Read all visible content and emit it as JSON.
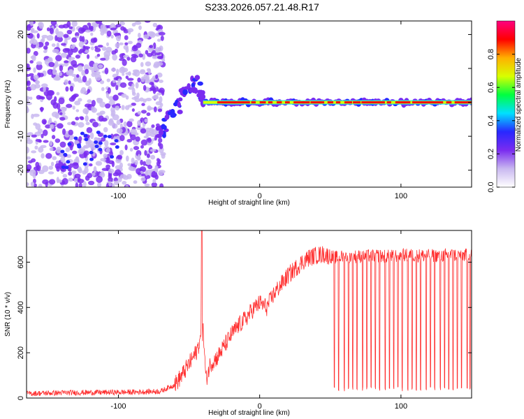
{
  "title": "S233.2026.057.21.48.R17",
  "chart_data": [
    {
      "type": "heatmap",
      "xlabel": "Height of straight line (km)",
      "ylabel": "Frequency (Hz)",
      "xlim": [
        -165,
        150
      ],
      "ylim": [
        -25,
        24
      ],
      "x_ticks": [
        -100,
        0,
        100
      ],
      "x_tick_labels": [
        "-100",
        "0",
        "100"
      ],
      "y_ticks": [
        -20,
        -10,
        0,
        10,
        20
      ],
      "y_tick_labels": [
        "-20",
        "-10",
        "0",
        "10",
        "20"
      ],
      "colorbar": {
        "label": "Normalized spectral amplitude",
        "range": [
          0,
          1
        ],
        "ticks": [
          0.0,
          0.2,
          0.4,
          0.6,
          0.8
        ],
        "tick_labels": [
          "0.0",
          "0.2",
          "0.4",
          "0.6",
          "0.8"
        ],
        "colormap": [
          "#ffffff",
          "#c9b8f0",
          "#7a2cf0",
          "#2828ff",
          "#00e0ff",
          "#00ff40",
          "#d8ff00",
          "#ffb000",
          "#ff0000",
          "#ff0080"
        ]
      },
      "regions": [
        {
          "desc": "noise",
          "x": [
            -165,
            -68
          ],
          "f": [
            -25,
            24
          ],
          "amplitude": 0.12
        },
        {
          "desc": "tracking onset",
          "x": [
            -70,
            -40
          ],
          "f": [
            -11,
            6
          ],
          "amplitude": 0.2
        },
        {
          "desc": "carrier line",
          "x": [
            -40,
            150
          ],
          "f": [
            0,
            0
          ],
          "amplitude": 0.9
        }
      ]
    },
    {
      "type": "line",
      "xlabel": "Height of straight line (km)",
      "ylabel": "SNR (10 * v/v)",
      "xlim": [
        -165,
        150
      ],
      "ylim": [
        0,
        740
      ],
      "x_ticks": [
        -100,
        0,
        100
      ],
      "x_tick_labels": [
        "-100",
        "0",
        "100"
      ],
      "y_ticks": [
        0,
        200,
        400,
        600
      ],
      "y_tick_labels": [
        "0",
        "200",
        "400",
        "600"
      ],
      "color": "#ff3030",
      "series": [
        {
          "x": [
            -165,
            -150,
            -130,
            -110,
            -90,
            -70,
            -60,
            -55,
            -50,
            -45,
            -42,
            -40,
            -38,
            -35,
            -30,
            -25,
            -20,
            -15,
            -10,
            -5,
            0,
            5,
            10,
            15,
            20,
            25,
            30,
            35,
            40,
            45,
            50,
            55,
            60,
            70,
            80,
            90,
            100,
            110,
            120,
            130,
            140,
            150
          ],
          "y": [
            20,
            22,
            24,
            25,
            26,
            30,
            60,
            100,
            150,
            200,
            260,
            300,
            80,
            150,
            180,
            230,
            280,
            320,
            350,
            390,
            420,
            400,
            460,
            500,
            540,
            570,
            600,
            620,
            630,
            635,
            625,
            620,
            625,
            625,
            630,
            625,
            630,
            630,
            628,
            630,
            632,
            630
          ]
        }
      ],
      "spike_max": 740,
      "dropouts_x": [
        53,
        56,
        60,
        63,
        66,
        69,
        73,
        76,
        79,
        82,
        85,
        89,
        92,
        95,
        98,
        101,
        105,
        108,
        111,
        114,
        118,
        121,
        124,
        128,
        131,
        134,
        137,
        140,
        143,
        147,
        149
      ]
    }
  ]
}
